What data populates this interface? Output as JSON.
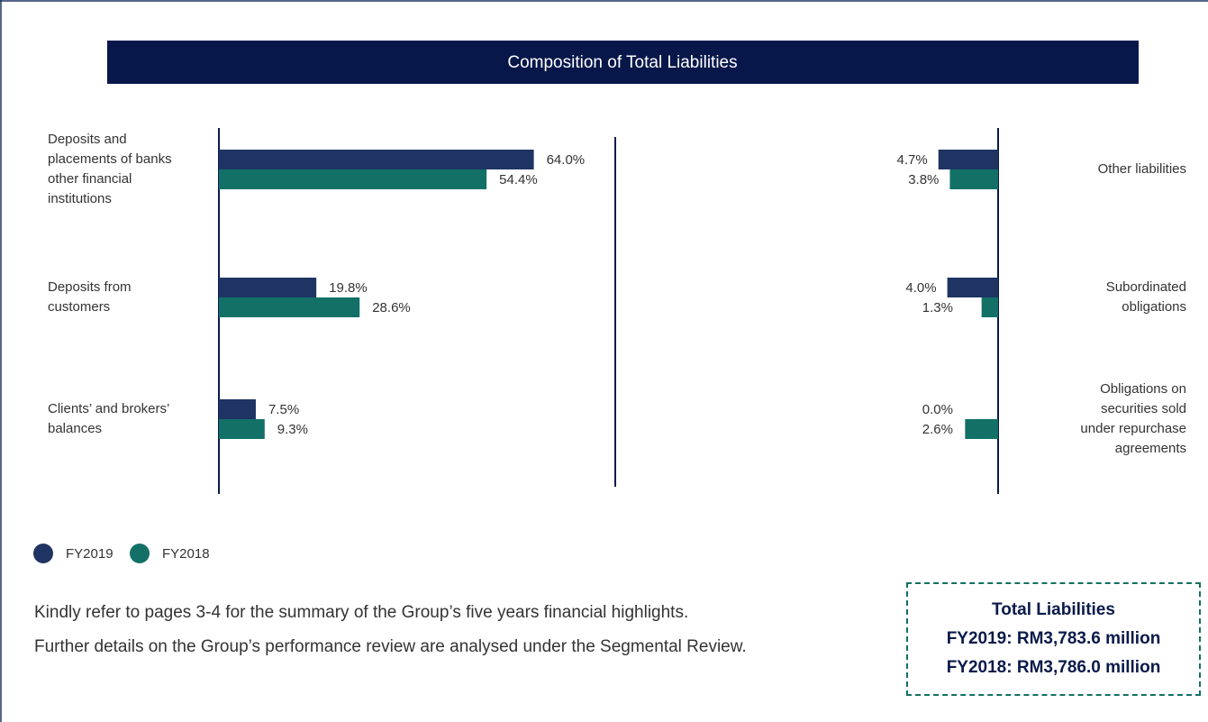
{
  "title": "Composition of Total Liabilities",
  "chart_data": [
    {
      "type": "bar",
      "orientation": "horizontal",
      "categories": [
        "Deposits and placements of banks other financial institutions",
        "Deposits from customers",
        "Clients’ and brokers’ balances"
      ],
      "series": [
        {
          "name": "FY2019",
          "color": "#1f3462",
          "values": [
            64.0,
            19.8,
            7.5
          ],
          "value_labels": [
            "64.0%",
            "19.8%",
            "7.5%"
          ]
        },
        {
          "name": "FY2018",
          "color": "#127067",
          "values": [
            54.4,
            28.6,
            9.3
          ],
          "value_labels": [
            "54.4%",
            "28.6%",
            "9.3%"
          ]
        }
      ],
      "xlim": [
        0,
        80
      ]
    },
    {
      "type": "bar",
      "orientation": "horizontal",
      "xreverse": true,
      "categories": [
        "Other liabilities",
        "Subordinated obligations",
        "Obligations on securities sold under repurchase agreements"
      ],
      "series": [
        {
          "color": "#1f3462",
          "values": [
            4.7,
            4.0,
            0.0
          ],
          "value_labels": [
            "4.7%",
            "4.0%",
            "0.0%"
          ]
        },
        {
          "color": "#127067",
          "values": [
            3.8,
            1.3,
            2.6
          ],
          "value_labels": [
            "3.8%",
            "1.3%",
            "2.6%"
          ]
        }
      ],
      "xlim": [
        0,
        30
      ]
    }
  ],
  "notes": [
    "Kindly refer to pages 3-4 for the summary of the Group’s five years financial highlights.",
    "Further details on the Group’s performance review are analysed under the Segmental Review."
  ],
  "summary": {
    "title": "Total Liabilities",
    "lines": [
      "FY2019: RM3,783.6 million",
      "FY2018: RM3,786.0 million"
    ]
  }
}
